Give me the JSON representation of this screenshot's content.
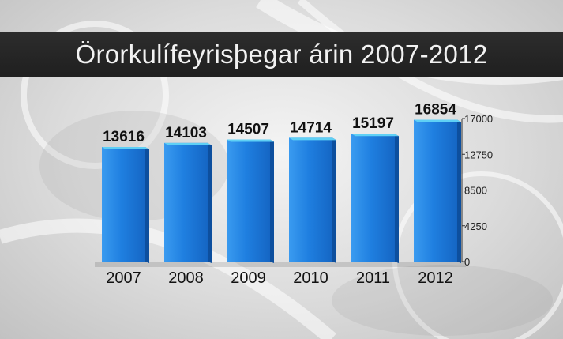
{
  "title": "Örorkulífeyrisþegar árin 2007-2012",
  "colors": {
    "bar": "#1f7fe0",
    "bar_dark": "#0d4f9e",
    "bar_top": "#5fd0f5",
    "title_bar": "#232323"
  },
  "chart_data": {
    "type": "bar",
    "title": "Örorkulífeyrisþegar árin 2007-2012",
    "categories": [
      "2007",
      "2008",
      "2009",
      "2010",
      "2011",
      "2012"
    ],
    "values": [
      13616,
      14103,
      14507,
      14714,
      15197,
      16854
    ],
    "data_labels": [
      "13616",
      "14103",
      "14507",
      "14714",
      "15197",
      "16854"
    ],
    "y_ticks": [
      "0",
      "4250",
      "8500",
      "12750",
      "17000"
    ],
    "ylim": [
      0,
      17000
    ],
    "axis_position": "right",
    "grid": false,
    "xlabel": "",
    "ylabel": ""
  }
}
